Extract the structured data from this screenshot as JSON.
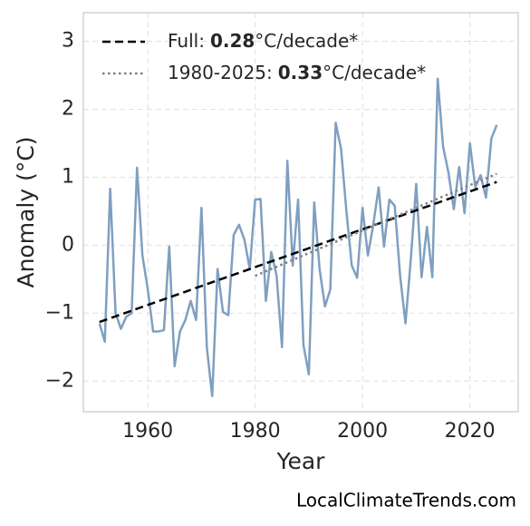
{
  "chart_data": {
    "type": "line",
    "xlabel": "Year",
    "ylabel": "Anomaly (°C)",
    "source": "LocalClimateTrends.com",
    "x": [
      1951,
      1952,
      1953,
      1954,
      1955,
      1956,
      1957,
      1958,
      1959,
      1960,
      1961,
      1962,
      1963,
      1964,
      1965,
      1966,
      1967,
      1968,
      1969,
      1970,
      1971,
      1972,
      1973,
      1974,
      1975,
      1976,
      1977,
      1978,
      1979,
      1980,
      1981,
      1982,
      1983,
      1984,
      1985,
      1986,
      1987,
      1988,
      1989,
      1990,
      1991,
      1992,
      1993,
      1994,
      1995,
      1996,
      1997,
      1998,
      1999,
      2000,
      2001,
      2002,
      2003,
      2004,
      2005,
      2006,
      2007,
      2008,
      2009,
      2010,
      2011,
      2012,
      2013,
      2014,
      2015,
      2016,
      2017,
      2018,
      2019,
      2020,
      2021,
      2022,
      2023,
      2024,
      2025
    ],
    "series": [
      {
        "color": "#7f9fc0",
        "values": [
          -1.15,
          -1.42,
          0.83,
          -1.0,
          -1.23,
          -1.05,
          -1.0,
          1.14,
          -0.15,
          -0.65,
          -1.27,
          -1.27,
          -1.25,
          -0.02,
          -1.78,
          -1.27,
          -1.1,
          -0.82,
          -1.1,
          0.55,
          -1.5,
          -2.22,
          -0.35,
          -0.98,
          -1.03,
          0.15,
          0.3,
          0.08,
          -0.35,
          0.67,
          0.68,
          -0.82,
          -0.1,
          -0.45,
          -1.5,
          1.24,
          -0.3,
          0.67,
          -1.47,
          -1.9,
          0.63,
          -0.35,
          -0.9,
          -0.65,
          1.8,
          1.42,
          0.5,
          -0.3,
          -0.48,
          0.55,
          -0.15,
          0.3,
          0.85,
          -0.02,
          0.67,
          0.58,
          -0.45,
          -1.15,
          -0.2,
          0.9,
          -0.47,
          0.27,
          -0.47,
          2.45,
          1.45,
          1.07,
          0.53,
          1.15,
          0.47,
          1.5,
          0.85,
          1.03,
          0.7,
          1.57,
          1.77
        ]
      }
    ],
    "trends": [
      {
        "label": "Full:",
        "slope": 0.28,
        "unit": "°C/decade*",
        "color": "#000000",
        "style": "dashed",
        "x": [
          1951,
          2025
        ],
        "values": [
          -1.13,
          0.93
        ]
      },
      {
        "label": "1980-2025:",
        "slope": 0.33,
        "unit": "°C/decade*",
        "color": "#808080",
        "style": "dotted",
        "x": [
          1980,
          2025
        ],
        "values": [
          -0.45,
          1.05
        ]
      }
    ],
    "xlim": [
      1948,
      2029
    ],
    "ylim": [
      -2.45,
      3.42
    ],
    "xticks": [
      1960,
      1980,
      2000,
      2020
    ],
    "yticks": [
      {
        "value": -2,
        "label": "−2"
      },
      {
        "value": -1,
        "label": "−1"
      },
      0,
      1,
      2,
      3
    ],
    "grid": true
  }
}
